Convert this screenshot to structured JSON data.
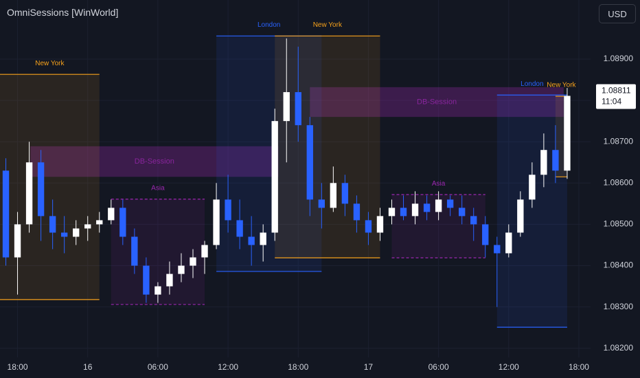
{
  "header": {
    "title": "OmniSessions [WinWorld]",
    "currency": "USD"
  },
  "chart_data": {
    "type": "candlestick",
    "x": [
      -1,
      0,
      1,
      2,
      3,
      4,
      5,
      6,
      7,
      8,
      9,
      10,
      11,
      12,
      13,
      14,
      15,
      16,
      17,
      18,
      19,
      20,
      21,
      22,
      23,
      24,
      25,
      26,
      27,
      28,
      29,
      30,
      31,
      32,
      33,
      34,
      35,
      36,
      37,
      38,
      39,
      40,
      41,
      42,
      43,
      44,
      45,
      46,
      47
    ],
    "open": [
      1.0863,
      1.0842,
      1.085,
      1.0865,
      1.0852,
      1.0848,
      1.0847,
      1.0849,
      1.085,
      1.0851,
      1.0854,
      1.0847,
      1.084,
      1.0833,
      1.0835,
      1.0838,
      1.084,
      1.0842,
      1.0845,
      1.0856,
      1.0851,
      1.0847,
      1.0845,
      1.0848,
      1.0875,
      1.0882,
      1.0874,
      1.0856,
      1.0854,
      1.086,
      1.0855,
      1.0851,
      1.0848,
      1.0852,
      1.0854,
      1.0852,
      1.0855,
      1.0853,
      1.0856,
      1.0854,
      1.0852,
      1.085,
      1.0845,
      1.0843,
      1.0848,
      1.0856,
      1.0862,
      1.0868,
      1.0863
    ],
    "high": [
      1.0866,
      1.0853,
      1.087,
      1.0868,
      1.0856,
      1.0852,
      1.0851,
      1.0852,
      1.0853,
      1.0856,
      1.0856,
      1.0849,
      1.0842,
      1.0836,
      1.0841,
      1.0843,
      1.0844,
      1.0846,
      1.086,
      1.0862,
      1.0856,
      1.0852,
      1.085,
      1.0878,
      1.0895,
      1.0893,
      1.0876,
      1.086,
      1.0864,
      1.0862,
      1.0857,
      1.0853,
      1.0854,
      1.0856,
      1.0857,
      1.0858,
      1.0857,
      1.0858,
      1.0857,
      1.0857,
      1.0854,
      1.0852,
      1.0847,
      1.085,
      1.0858,
      1.0865,
      1.0872,
      1.0874,
      1.0883
    ],
    "low": [
      1.084,
      1.0833,
      1.0848,
      1.0846,
      1.0844,
      1.0843,
      1.0845,
      1.0846,
      1.0848,
      1.085,
      1.0845,
      1.0838,
      1.0831,
      1.0831,
      1.0833,
      1.0836,
      1.0837,
      1.0838,
      1.0844,
      1.0848,
      1.0844,
      1.084,
      1.0841,
      1.0846,
      1.0865,
      1.087,
      1.0852,
      1.0849,
      1.0853,
      1.0852,
      1.0848,
      1.0845,
      1.0846,
      1.085,
      1.0851,
      1.085,
      1.0851,
      1.0851,
      1.0852,
      1.085,
      1.0846,
      1.0842,
      1.083,
      1.0842,
      1.0847,
      1.0854,
      1.0859,
      1.086,
      1.0861
    ],
    "close": [
      1.0842,
      1.085,
      1.0865,
      1.0852,
      1.0848,
      1.0847,
      1.0849,
      1.085,
      1.0851,
      1.0854,
      1.0847,
      1.084,
      1.0833,
      1.0835,
      1.0838,
      1.084,
      1.0842,
      1.0845,
      1.0856,
      1.0851,
      1.0847,
      1.0845,
      1.0848,
      1.0875,
      1.0882,
      1.0874,
      1.0856,
      1.0854,
      1.086,
      1.0855,
      1.0851,
      1.0848,
      1.0852,
      1.0854,
      1.0852,
      1.0855,
      1.0853,
      1.0856,
      1.0854,
      1.0852,
      1.085,
      1.0845,
      1.0843,
      1.0848,
      1.0856,
      1.0862,
      1.0868,
      1.0863,
      1.08811
    ],
    "up_color": "#ffffff",
    "down_color": "#2962ff",
    "xlim": [
      -1.5,
      49
    ],
    "ylim": [
      1.08178,
      1.09043
    ],
    "xticks": [
      {
        "value": 0,
        "label": "18:00"
      },
      {
        "value": 6,
        "label": "16"
      },
      {
        "value": 12,
        "label": "06:00"
      },
      {
        "value": 18,
        "label": "12:00"
      },
      {
        "value": 24,
        "label": "18:00"
      },
      {
        "value": 30,
        "label": "17"
      },
      {
        "value": 36,
        "label": "06:00"
      },
      {
        "value": 42,
        "label": "12:00"
      },
      {
        "value": 48,
        "label": "18:00"
      }
    ],
    "yticks": [
      {
        "value": 1.082,
        "label": "1.08200"
      },
      {
        "value": 1.083,
        "label": "1.08300"
      },
      {
        "value": 1.084,
        "label": "1.08400"
      },
      {
        "value": 1.085,
        "label": "1.08500"
      },
      {
        "value": 1.086,
        "label": "1.08600"
      },
      {
        "value": 1.087,
        "label": "1.08700"
      },
      {
        "value": 1.088,
        "label": "1.08800"
      },
      {
        "value": 1.089,
        "label": "1.08900"
      }
    ],
    "current_price": {
      "value": 1.08811,
      "label": "1.08811",
      "countdown": "11:04"
    },
    "sessions": [
      {
        "name": "New York",
        "start": -1.5,
        "end": 7,
        "high": 1.08863,
        "low": 1.08318,
        "color": "#f7a21b",
        "dashed": false
      },
      {
        "name": "Asia",
        "start": 8,
        "end": 16,
        "high": 1.08561,
        "low": 1.08306,
        "color": "#9c27b0",
        "dashed": true
      },
      {
        "name": "London",
        "start": 17,
        "end": 26,
        "high": 1.08956,
        "low": 1.08386,
        "color": "#2962ff",
        "dashed": false
      },
      {
        "name": "New York",
        "start": 22,
        "end": 31,
        "high": 1.08956,
        "low": 1.08419,
        "color": "#f7a21b",
        "dashed": false
      },
      {
        "name": "Asia",
        "start": 32,
        "end": 40,
        "high": 1.08572,
        "low": 1.08419,
        "color": "#9c27b0",
        "dashed": true
      },
      {
        "name": "London",
        "start": 41,
        "end": 47,
        "high": 1.08813,
        "low": 1.08251,
        "color": "#2962ff",
        "dashed": false
      },
      {
        "name": "New York",
        "start": 46,
        "end": 47,
        "high": 1.0881,
        "low": 1.08615,
        "color": "#f7a21b",
        "dashed": false
      }
    ],
    "db_sessions": [
      {
        "name": "DB-Session",
        "start": 1.1,
        "end": 22.3,
        "high": 1.08689,
        "low": 1.08615,
        "color": "#9c27b0"
      },
      {
        "name": "DB-Session",
        "start": 25,
        "end": 46.7,
        "high": 1.08832,
        "low": 1.0876,
        "color": "#9c27b0"
      }
    ]
  }
}
